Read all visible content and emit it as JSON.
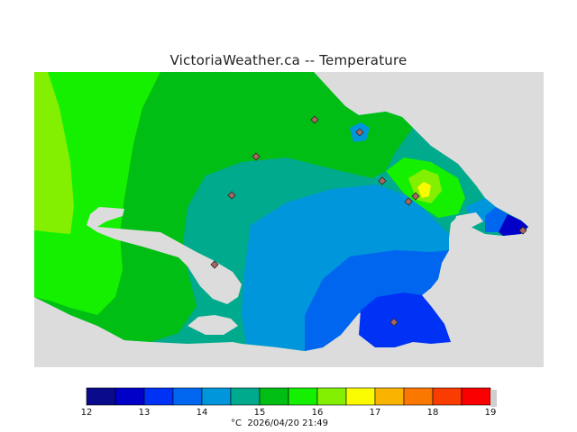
{
  "header": {
    "title": "VictoriaWeather.ca -- Temperature"
  },
  "footer": {
    "unit": "°C",
    "timestamp": "2026/04/20 21:49"
  },
  "legend": {
    "ticks": [
      "12",
      "13",
      "14",
      "15",
      "16",
      "17",
      "18",
      "19"
    ],
    "bins": [
      {
        "from": 12.0,
        "to": 12.5,
        "color": "#0a0a8c"
      },
      {
        "from": 12.5,
        "to": 13.0,
        "color": "#0000c8"
      },
      {
        "from": 13.0,
        "to": 13.5,
        "color": "#0032f5"
      },
      {
        "from": 13.5,
        "to": 14.0,
        "color": "#0066f0"
      },
      {
        "from": 14.0,
        "to": 14.5,
        "color": "#0096dc"
      },
      {
        "from": 14.5,
        "to": 15.0,
        "color": "#00aa8c"
      },
      {
        "from": 15.0,
        "to": 15.5,
        "color": "#00be14"
      },
      {
        "from": 15.5,
        "to": 16.0,
        "color": "#14f000"
      },
      {
        "from": 16.0,
        "to": 16.5,
        "color": "#82f000"
      },
      {
        "from": 16.5,
        "to": 17.0,
        "color": "#fafa00"
      },
      {
        "from": 17.0,
        "to": 17.5,
        "color": "#fab400"
      },
      {
        "from": 17.5,
        "to": 18.0,
        "color": "#fa7800"
      },
      {
        "from": 18.0,
        "to": 18.5,
        "color": "#fa3c00"
      },
      {
        "from": 18.5,
        "to": 19.0,
        "color": "#fa0000"
      }
    ]
  },
  "map": {
    "background_color": "#dcdcdc"
  },
  "stations": [
    {
      "id": "station-1"
    },
    {
      "id": "station-2"
    },
    {
      "id": "station-3"
    },
    {
      "id": "station-4"
    },
    {
      "id": "station-5"
    },
    {
      "id": "station-6"
    },
    {
      "id": "station-7"
    },
    {
      "id": "station-8"
    },
    {
      "id": "station-9"
    },
    {
      "id": "station-10"
    }
  ]
}
